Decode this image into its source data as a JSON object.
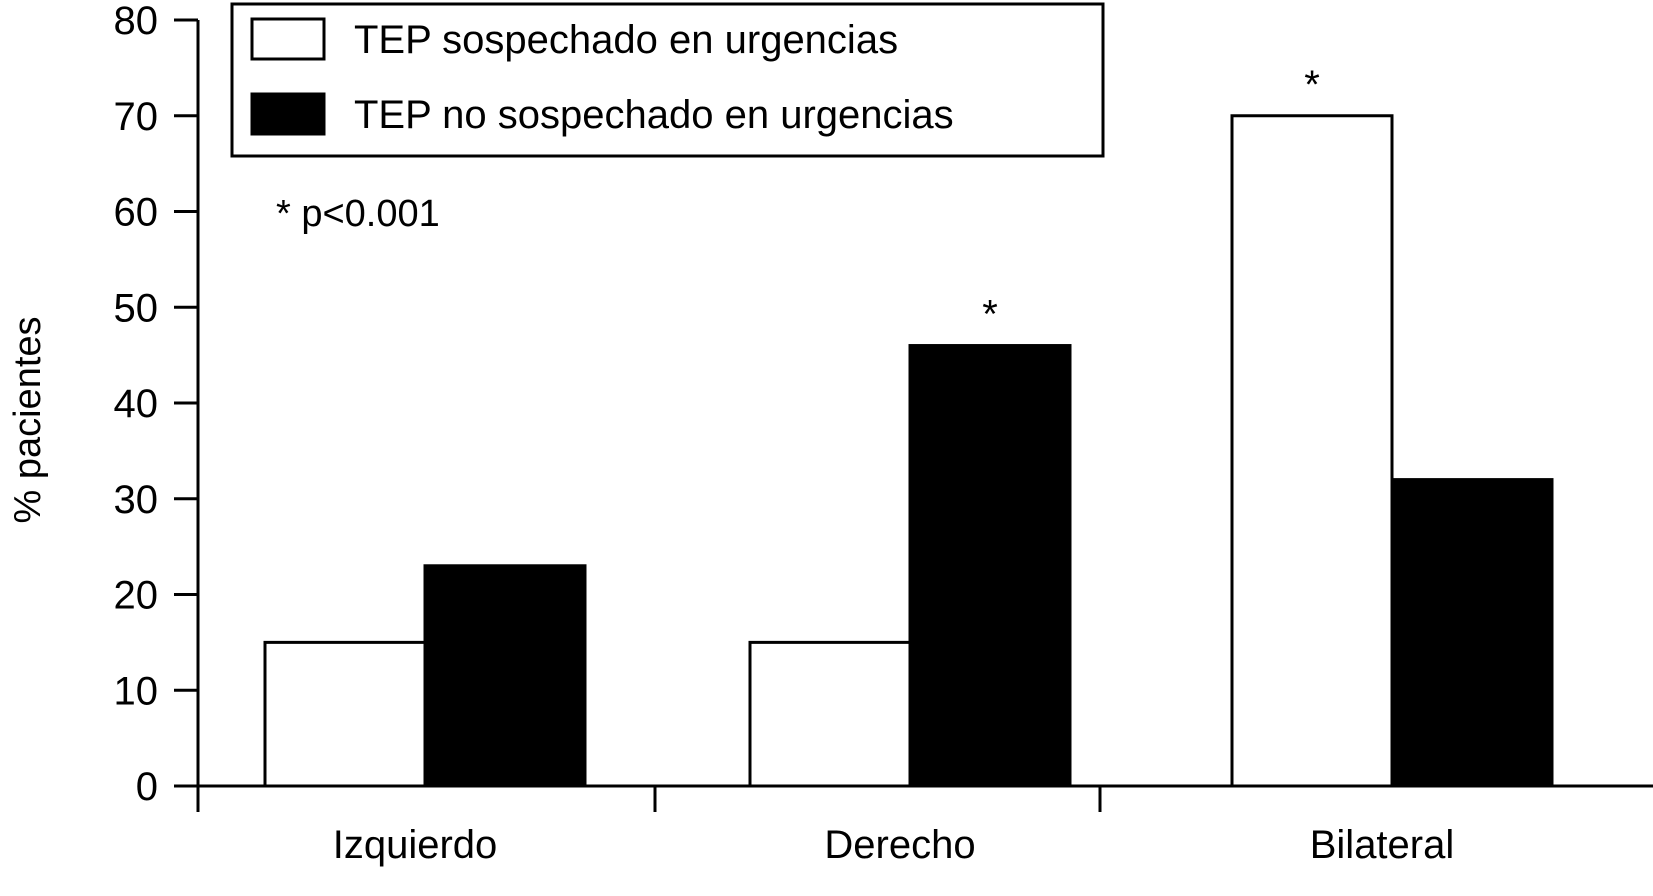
{
  "chart_data": {
    "type": "bar",
    "categories": [
      "Izquierdo",
      "Derecho",
      "Bilateral"
    ],
    "series": [
      {
        "name": "TEP sospechado en urgencias",
        "values": [
          15,
          15,
          70
        ],
        "color": "#ffffff"
      },
      {
        "name": "TEP no sospechado en urgencias",
        "values": [
          23,
          46,
          32
        ],
        "color": "#000000"
      }
    ],
    "title": "",
    "xlabel": "",
    "ylabel": "% pacientes",
    "ylim": [
      0,
      80
    ],
    "yticks": [
      "0",
      "10",
      "20",
      "30",
      "40",
      "50",
      "60",
      "70",
      "80"
    ],
    "legend_position": "top-left",
    "grid": false,
    "annotation": "* p<0.001",
    "significance_marks": [
      {
        "category": "Derecho",
        "series": "TEP no sospechado en urgencias",
        "label": "*"
      },
      {
        "category": "Bilateral",
        "series": "TEP sospechado en urgencias",
        "label": "*"
      }
    ]
  }
}
